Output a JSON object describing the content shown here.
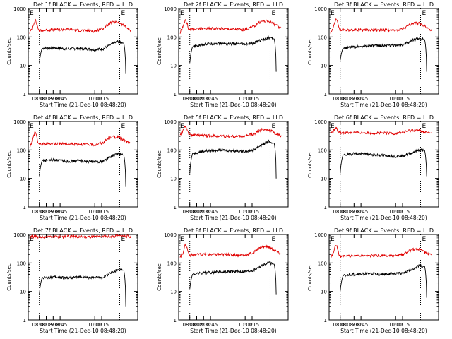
{
  "figure": {
    "xlabel": "Start Time (21-Dec-10 08:48:20)",
    "ylabel": "Counts/sec",
    "x_tick_labels": [
      "08:00",
      "08:15",
      "08:30",
      "08:45",
      "10:00",
      "10:15"
    ],
    "y_tick_labels": [
      "1",
      "10",
      "100",
      "1000"
    ],
    "marker_label": "E",
    "colors": {
      "events": "#000000",
      "lld": "#e00000",
      "axes": "#000000",
      "background": "#ffffff"
    }
  },
  "chart_data": [
    {
      "type": "line",
      "title": "Det 1f BLACK = Events, RED = LLD",
      "x_unit": "hours after 08:00 (axis labels as printed)",
      "y_scale": "log",
      "ylim": [
        1,
        1000
      ],
      "series": [
        {
          "name": "Events",
          "color": "#000000",
          "x": [
            0.0,
            0.1,
            0.5,
            1.0,
            1.5,
            2.0,
            2.3,
            2.6,
            2.85,
            3.05,
            3.12
          ],
          "y": [
            12,
            40,
            42,
            38,
            40,
            36,
            38,
            55,
            70,
            60,
            5
          ]
        },
        {
          "name": "LLD",
          "color": "#e00000",
          "x": [
            -0.35,
            -0.25,
            -0.15,
            -0.05,
            0.0,
            0.5,
            1.0,
            1.5,
            2.0,
            2.3,
            2.6,
            2.85,
            3.05,
            3.3
          ],
          "y": [
            140,
            200,
            400,
            200,
            170,
            180,
            185,
            170,
            160,
            200,
            320,
            330,
            250,
            160
          ]
        }
      ]
    },
    {
      "type": "line",
      "title": "Det 2f BLACK = Events, RED = LLD",
      "y_scale": "log",
      "ylim": [
        1,
        1000
      ],
      "series": [
        {
          "name": "Events",
          "color": "#000000",
          "x": [
            0.0,
            0.1,
            0.5,
            1.0,
            1.5,
            2.0,
            2.3,
            2.6,
            2.85,
            3.05,
            3.12
          ],
          "y": [
            12,
            45,
            55,
            60,
            58,
            55,
            60,
            80,
            95,
            85,
            6
          ]
        },
        {
          "name": "LLD",
          "color": "#e00000",
          "x": [
            -0.35,
            -0.25,
            -0.15,
            -0.05,
            0.0,
            0.5,
            1.0,
            1.5,
            2.0,
            2.3,
            2.6,
            2.85,
            3.05,
            3.3
          ],
          "y": [
            140,
            220,
            420,
            200,
            180,
            200,
            200,
            190,
            180,
            230,
            360,
            360,
            280,
            190
          ]
        }
      ]
    },
    {
      "type": "line",
      "title": "Det 3f BLACK = Events, RED = LLD",
      "y_scale": "log",
      "ylim": [
        1,
        1000
      ],
      "series": [
        {
          "name": "Events",
          "color": "#000000",
          "x": [
            0.0,
            0.1,
            0.5,
            1.0,
            1.5,
            2.0,
            2.3,
            2.6,
            2.85,
            3.05,
            3.12
          ],
          "y": [
            15,
            40,
            45,
            48,
            50,
            50,
            55,
            75,
            90,
            80,
            6
          ]
        },
        {
          "name": "LLD",
          "color": "#e00000",
          "x": [
            -0.35,
            -0.25,
            -0.15,
            -0.05,
            0.0,
            0.5,
            1.0,
            1.5,
            2.0,
            2.3,
            2.6,
            2.85,
            3.05,
            3.3
          ],
          "y": [
            140,
            200,
            450,
            210,
            170,
            180,
            180,
            175,
            170,
            200,
            300,
            300,
            240,
            170
          ]
        }
      ]
    },
    {
      "type": "line",
      "title": "Det 4f BLACK = Events, RED = LLD",
      "y_scale": "log",
      "ylim": [
        1,
        1000
      ],
      "series": [
        {
          "name": "Events",
          "color": "#000000",
          "x": [
            0.0,
            0.1,
            0.5,
            1.0,
            1.5,
            2.0,
            2.3,
            2.6,
            2.85,
            3.05,
            3.12
          ],
          "y": [
            12,
            42,
            45,
            40,
            42,
            38,
            40,
            60,
            75,
            65,
            5
          ]
        },
        {
          "name": "LLD",
          "color": "#e00000",
          "x": [
            -0.35,
            -0.25,
            -0.15,
            -0.05,
            0.0,
            0.5,
            1.0,
            1.5,
            2.0,
            2.3,
            2.6,
            2.85,
            3.05,
            3.3
          ],
          "y": [
            130,
            200,
            450,
            180,
            160,
            170,
            165,
            160,
            150,
            180,
            290,
            280,
            220,
            160
          ]
        }
      ]
    },
    {
      "type": "line",
      "title": "Det 5f BLACK = Events, RED = LLD",
      "y_scale": "log",
      "ylim": [
        1,
        1000
      ],
      "series": [
        {
          "name": "Events",
          "color": "#000000",
          "x": [
            0.0,
            0.1,
            0.5,
            1.0,
            1.5,
            2.0,
            2.3,
            2.6,
            2.85,
            3.05,
            3.12
          ],
          "y": [
            15,
            75,
            90,
            100,
            95,
            90,
            100,
            150,
            200,
            170,
            10
          ]
        },
        {
          "name": "LLD",
          "color": "#e00000",
          "x": [
            -0.35,
            -0.25,
            -0.15,
            -0.05,
            0.0,
            0.5,
            1.0,
            1.5,
            2.0,
            2.3,
            2.6,
            2.85,
            3.05,
            3.3
          ],
          "y": [
            350,
            450,
            700,
            380,
            330,
            320,
            310,
            300,
            300,
            360,
            520,
            520,
            400,
            300
          ]
        }
      ]
    },
    {
      "type": "line",
      "title": "Det 6f BLACK = Events, RED = LLD",
      "y_scale": "log",
      "ylim": [
        1,
        1000
      ],
      "series": [
        {
          "name": "Events",
          "color": "#000000",
          "x": [
            0.0,
            0.1,
            0.5,
            1.0,
            1.5,
            2.0,
            2.3,
            2.6,
            2.85,
            3.05,
            3.12
          ],
          "y": [
            15,
            65,
            75,
            70,
            65,
            60,
            65,
            80,
            100,
            95,
            12
          ]
        },
        {
          "name": "LLD",
          "color": "#e00000",
          "x": [
            -0.35,
            -0.25,
            -0.15,
            -0.05,
            0.0,
            0.5,
            1.0,
            1.5,
            2.0,
            2.3,
            2.6,
            2.85,
            3.05,
            3.3
          ],
          "y": [
            400,
            450,
            600,
            420,
            400,
            410,
            400,
            390,
            380,
            420,
            500,
            480,
            420,
            380
          ]
        }
      ]
    },
    {
      "type": "line",
      "title": "Det 7f BLACK = Events, RED = LLD",
      "y_scale": "log",
      "ylim": [
        1,
        1000
      ],
      "series": [
        {
          "name": "Events",
          "color": "#000000",
          "x": [
            0.0,
            0.1,
            0.5,
            1.0,
            1.5,
            2.0,
            2.3,
            2.6,
            2.85,
            3.05,
            3.12
          ],
          "y": [
            8,
            30,
            32,
            30,
            32,
            30,
            32,
            45,
            60,
            55,
            3
          ]
        },
        {
          "name": "LLD",
          "color": "#e00000",
          "x": [
            -0.35,
            -0.2,
            0.0,
            0.5,
            1.0,
            1.5,
            2.0,
            2.5,
            3.0,
            3.3
          ],
          "y": [
            800,
            850,
            800,
            820,
            850,
            820,
            830,
            870,
            900,
            850
          ]
        }
      ]
    },
    {
      "type": "line",
      "title": "Det 8f BLACK = Events, RED = LLD",
      "y_scale": "log",
      "ylim": [
        1,
        1000
      ],
      "series": [
        {
          "name": "Events",
          "color": "#000000",
          "x": [
            0.0,
            0.1,
            0.5,
            1.0,
            1.5,
            2.0,
            2.3,
            2.6,
            2.85,
            3.05,
            3.12
          ],
          "y": [
            12,
            40,
            45,
            48,
            50,
            50,
            55,
            80,
            100,
            90,
            8
          ]
        },
        {
          "name": "LLD",
          "color": "#e00000",
          "x": [
            -0.35,
            -0.25,
            -0.15,
            -0.05,
            0.0,
            0.5,
            1.0,
            1.5,
            2.0,
            2.3,
            2.6,
            2.85,
            3.05,
            3.3
          ],
          "y": [
            160,
            220,
            450,
            230,
            190,
            200,
            200,
            195,
            190,
            230,
            370,
            360,
            280,
            200
          ]
        }
      ]
    },
    {
      "type": "line",
      "title": "Det 9f BLACK = Events, RED = LLD",
      "y_scale": "log",
      "ylim": [
        1,
        1000
      ],
      "series": [
        {
          "name": "Events",
          "color": "#000000",
          "x": [
            0.0,
            0.1,
            0.5,
            1.0,
            1.5,
            2.0,
            2.3,
            2.6,
            2.85,
            3.05,
            3.12
          ],
          "y": [
            10,
            35,
            40,
            42,
            40,
            42,
            45,
            60,
            80,
            75,
            6
          ]
        },
        {
          "name": "LLD",
          "color": "#e00000",
          "x": [
            -0.35,
            -0.25,
            -0.15,
            -0.05,
            0.0,
            0.5,
            1.0,
            1.5,
            2.0,
            2.3,
            2.6,
            2.85,
            3.05,
            3.3
          ],
          "y": [
            150,
            220,
            450,
            210,
            170,
            180,
            185,
            180,
            175,
            200,
            300,
            300,
            240,
            180
          ]
        }
      ]
    }
  ]
}
